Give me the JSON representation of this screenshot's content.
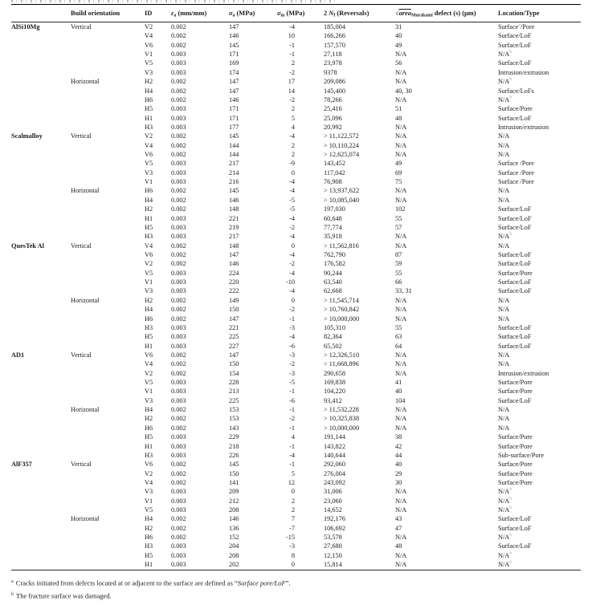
{
  "table": {
    "columns": {
      "orientation": "Build orientation",
      "id": "ID",
      "ea": {
        "sym": "ε",
        "sub": "a",
        "unit": " (mm/mm)"
      },
      "sa": {
        "sym": "σ",
        "sub": "a",
        "unit": " (MPa)"
      },
      "sm": {
        "sym": "σ",
        "sub": "m",
        "unit": " (MPa)"
      },
      "nf": {
        "pre": "2 ",
        "sym": "N",
        "sub": "f",
        "unit": " (Reversals)"
      },
      "defect": {
        "root": "√",
        "word": "area",
        "sub": "Murakami",
        "unit": " defect (s) (μm)"
      },
      "location": "Location/Type"
    },
    "groups": [
      {
        "alloy": "AlSi10Mg",
        "orientations": [
          {
            "name": "Vertical",
            "rows": [
              {
                "id": "V2",
                "ea": "0.002",
                "sa": "147",
                "sm": "-4",
                "n": "185,004",
                "defect": "31",
                "loc": "Surface",
                "sup": "a",
                "loc2": "/Pore"
              },
              {
                "id": "V4",
                "ea": "0.002",
                "sa": "146",
                "sm": "10",
                "n": "166,266",
                "defect": "40",
                "loc": "Surface/LoF"
              },
              {
                "id": "V6",
                "ea": "0.002",
                "sa": "145",
                "sm": "-1",
                "n": "157,570",
                "defect": "49",
                "loc": "Surface/LoF"
              },
              {
                "id": "V1",
                "ea": "0.003",
                "sa": "171",
                "sm": "-1",
                "n": "27,118",
                "defect": "N/A",
                "loc": "N/A",
                "sup": "b"
              },
              {
                "id": "V5",
                "ea": "0.003",
                "sa": "169",
                "sm": "2",
                "n": "23,978",
                "defect": "56",
                "loc": "Surface/LoF"
              },
              {
                "id": "V3",
                "ea": "0.003",
                "sa": "174",
                "sm": "-2",
                "n": "9378",
                "defect": "N/A",
                "loc": "Intrusion/extrusion"
              }
            ]
          },
          {
            "name": "Horizontal",
            "rows": [
              {
                "id": "H2",
                "ea": "0.002",
                "sa": "147",
                "sm": "17",
                "n": "209,086",
                "defect": "N/A",
                "loc": "N/A",
                "sup": "b"
              },
              {
                "id": "H4",
                "ea": "0.002",
                "sa": "147",
                "sm": "14",
                "n": "145,400",
                "defect": "40, 30",
                "loc": "Surface/LoFs"
              },
              {
                "id": "H6",
                "ea": "0.002",
                "sa": "146",
                "sm": "-2",
                "n": "78,266",
                "defect": "N/A",
                "loc": "N/A",
                "sup": "b"
              },
              {
                "id": "H5",
                "ea": "0.003",
                "sa": "171",
                "sm": "2",
                "n": "25,416",
                "defect": "51",
                "loc": "Surface/Pore"
              },
              {
                "id": "H1",
                "ea": "0.003",
                "sa": "171",
                "sm": "5",
                "n": "25,096",
                "defect": "48",
                "loc": "Surface/LoF"
              },
              {
                "id": "H3",
                "ea": "0.003",
                "sa": "177",
                "sm": "4",
                "n": "20,992",
                "defect": "N/A",
                "loc": "Intrusion/extrusion"
              }
            ]
          }
        ]
      },
      {
        "alloy": "Scalmalloy",
        "orientations": [
          {
            "name": "Vertical",
            "rows": [
              {
                "id": "V2",
                "ea": "0.002",
                "sa": "145",
                "sm": "-4",
                "n": "> 11,122,572",
                "defect": "N/A",
                "loc": "N/A"
              },
              {
                "id": "V4",
                "ea": "0.002",
                "sa": "144",
                "sm": "2",
                "n": "> 10,110,224",
                "defect": "N/A",
                "loc": "N/A"
              },
              {
                "id": "V6",
                "ea": "0.002",
                "sa": "144",
                "sm": "2",
                "n": "> 12,625,074",
                "defect": "N/A",
                "loc": "N/A"
              },
              {
                "id": "V5",
                "ea": "0.003",
                "sa": "217",
                "sm": "-9",
                "n": "143,452",
                "defect": "49",
                "loc": "Surface /Pore"
              },
              {
                "id": "V3",
                "ea": "0.003",
                "sa": "214",
                "sm": "0",
                "n": "117,042",
                "defect": "69",
                "loc": "Surface /Pore"
              },
              {
                "id": "V1",
                "ea": "0.003",
                "sa": "216",
                "sm": "-4",
                "n": "76,908",
                "defect": "75",
                "loc": "Surface /Pore"
              }
            ]
          },
          {
            "name": "Horizontal",
            "rows": [
              {
                "id": "H6",
                "ea": "0.002",
                "sa": "145",
                "sm": "-4",
                "n": "> 13,937,622",
                "defect": "N/A",
                "loc": "N/A"
              },
              {
                "id": "H4",
                "ea": "0.002",
                "sa": "146",
                "sm": "-5",
                "n": "> 10,085,040",
                "defect": "N/A",
                "loc": "N/A"
              },
              {
                "id": "H2",
                "ea": "0.002",
                "sa": "148",
                "sm": "-5",
                "n": "197,030",
                "defect": "102",
                "loc": "Surface/LoF"
              },
              {
                "id": "H1",
                "ea": "0.003",
                "sa": "221",
                "sm": "-4",
                "n": "60,648",
                "defect": "55",
                "loc": "Surface/LoF"
              },
              {
                "id": "H5",
                "ea": "0.003",
                "sa": "219",
                "sm": "-2",
                "n": "77,774",
                "defect": "57",
                "loc": "Surface/LoF"
              },
              {
                "id": "H3",
                "ea": "0.003",
                "sa": "217",
                "sm": "-4",
                "n": "35,918",
                "defect": "N/A",
                "loc": "N/A",
                "sup": "b"
              }
            ]
          }
        ]
      },
      {
        "alloy": "QuesTek Al",
        "orientations": [
          {
            "name": "Vertical",
            "rows": [
              {
                "id": "V4",
                "ea": "0.002",
                "sa": "148",
                "sm": "0",
                "n": "> 11,562,816",
                "defect": "N/A",
                "loc": "N/A"
              },
              {
                "id": "V6",
                "ea": "0.002",
                "sa": "147",
                "sm": "-4",
                "n": "762,790",
                "defect": "87",
                "loc": "Surface/LoF"
              },
              {
                "id": "V2",
                "ea": "0.002",
                "sa": "146",
                "sm": "-2",
                "n": "176,582",
                "defect": "59",
                "loc": "Surface/LoF"
              },
              {
                "id": "V5",
                "ea": "0.003",
                "sa": "224",
                "sm": "-4",
                "n": "90,244",
                "defect": "55",
                "loc": "Surface/Pore"
              },
              {
                "id": "V1",
                "ea": "0.003",
                "sa": "220",
                "sm": "-10",
                "n": "63,540",
                "defect": "66",
                "loc": "Surface/LoF"
              },
              {
                "id": "V3",
                "ea": "0.003",
                "sa": "222",
                "sm": "-4",
                "n": "62,668",
                "defect": "33, 31",
                "loc": "Surface/LoF"
              }
            ]
          },
          {
            "name": "Horizontal",
            "rows": [
              {
                "id": "H2",
                "ea": "0.002",
                "sa": "149",
                "sm": "0",
                "n": "> 11,545,714",
                "defect": "N/A",
                "loc": "N/A"
              },
              {
                "id": "H4",
                "ea": "0.002",
                "sa": "150",
                "sm": "-2",
                "n": "> 10,760,842",
                "defect": "N/A",
                "loc": "N/A"
              },
              {
                "id": "H6",
                "ea": "0.002",
                "sa": "147",
                "sm": "-1",
                "n": "> 10,000,000",
                "defect": "N/A",
                "loc": "N/A"
              },
              {
                "id": "H3",
                "ea": "0.003",
                "sa": "221",
                "sm": "-3",
                "n": "105,310",
                "defect": "55",
                "loc": "Surface/LoF"
              },
              {
                "id": "H5",
                "ea": "0.003",
                "sa": "225",
                "sm": "-4",
                "n": "82,364",
                "defect": "63",
                "loc": "Surface/LoF"
              },
              {
                "id": "H1",
                "ea": "0.003",
                "sa": "227",
                "sm": "-6",
                "n": "65,502",
                "defect": "64",
                "loc": "Surface/LoF"
              }
            ]
          }
        ]
      },
      {
        "alloy": "AD1",
        "orientations": [
          {
            "name": "Vertical",
            "rows": [
              {
                "id": "V6",
                "ea": "0.002",
                "sa": "147",
                "sm": "-3",
                "n": "> 12,326,510",
                "defect": "N/A",
                "loc": "N/A"
              },
              {
                "id": "V4",
                "ea": "0.002",
                "sa": "150",
                "sm": "-2",
                "n": "> 11,668,896",
                "defect": "N/A",
                "loc": "N/A"
              },
              {
                "id": "V2",
                "ea": "0.002",
                "sa": "154",
                "sm": "-3",
                "n": "290,658",
                "defect": "N/A",
                "loc": "Intrusion/extrusion"
              },
              {
                "id": "V5",
                "ea": "0.003",
                "sa": "228",
                "sm": "-5",
                "n": "169,838",
                "defect": "41",
                "loc": "Surface/Pore"
              },
              {
                "id": "V1",
                "ea": "0.003",
                "sa": "213",
                "sm": "-1",
                "n": "104,220",
                "defect": "40",
                "loc": "Surface/Pore"
              },
              {
                "id": "V3",
                "ea": "0.003",
                "sa": "225",
                "sm": "-6",
                "n": "93,412",
                "defect": "104",
                "loc": "Surface/LoF"
              }
            ]
          },
          {
            "name": "Horizontal",
            "rows": [
              {
                "id": "H4",
                "ea": "0.002",
                "sa": "153",
                "sm": "-1",
                "n": "> 11,532,228",
                "defect": "N/A",
                "loc": "N/A"
              },
              {
                "id": "H2",
                "ea": "0.002",
                "sa": "153",
                "sm": "-2",
                "n": "> 10,325,838",
                "defect": "N/A",
                "loc": "N/A"
              },
              {
                "id": "H6",
                "ea": "0.002",
                "sa": "143",
                "sm": "-1",
                "n": "> 10,000,000",
                "defect": "N/A",
                "loc": "N/A"
              },
              {
                "id": "H5",
                "ea": "0.003",
                "sa": "229",
                "sm": "4",
                "n": "191,144",
                "defect": "38",
                "loc": "Surface/Pore"
              },
              {
                "id": "H1",
                "ea": "0.003",
                "sa": "218",
                "sm": "-1",
                "n": "143,822",
                "defect": "42",
                "loc": "Surface/Pore"
              },
              {
                "id": "H3",
                "ea": "0.003",
                "sa": "226",
                "sm": "-4",
                "n": "140,644",
                "defect": "44",
                "loc": "Sub-surface/Pore"
              }
            ]
          }
        ]
      },
      {
        "alloy": "AlF357",
        "orientations": [
          {
            "name": "Vertical",
            "rows": [
              {
                "id": "V6",
                "ea": "0.002",
                "sa": "145",
                "sm": "-1",
                "n": "292,060",
                "defect": "40",
                "loc": "Surface/Pore"
              },
              {
                "id": "V2",
                "ea": "0.002",
                "sa": "150",
                "sm": "5",
                "n": "276,004",
                "defect": "29",
                "loc": "Surface/Pore"
              },
              {
                "id": "V4",
                "ea": "0.002",
                "sa": "141",
                "sm": "12",
                "n": "243,092",
                "defect": "30",
                "loc": "Surface/Pore"
              },
              {
                "id": "V3",
                "ea": "0.003",
                "sa": "209",
                "sm": "0",
                "n": "31,006",
                "defect": "N/A",
                "loc": "N/A",
                "sup": "b"
              },
              {
                "id": "V1",
                "ea": "0.003",
                "sa": "212",
                "sm": "2",
                "n": "23,060",
                "defect": "N/A",
                "loc": "N/A",
                "sup": "b"
              },
              {
                "id": "V5",
                "ea": "0.003",
                "sa": "208",
                "sm": "2",
                "n": "14,652",
                "defect": "N/A",
                "loc": "N/A",
                "sup": "b"
              }
            ]
          },
          {
            "name": "Horizontal",
            "rows": [
              {
                "id": "H4",
                "ea": "0.002",
                "sa": "146",
                "sm": "7",
                "n": "192,176",
                "defect": "43",
                "loc": "Surface/LoF"
              },
              {
                "id": "H2",
                "ea": "0.002",
                "sa": "136",
                "sm": "-7",
                "n": "106,692",
                "defect": "47",
                "loc": "Surface/LoF"
              },
              {
                "id": "H6",
                "ea": "0.002",
                "sa": "152",
                "sm": "-15",
                "n": "53,578",
                "defect": "N/A",
                "loc": "N/A",
                "sup": "b"
              },
              {
                "id": "H3",
                "ea": "0.003",
                "sa": "204",
                "sm": "-3",
                "n": "27,680",
                "defect": "48",
                "loc": "Surface/LoF"
              },
              {
                "id": "H5",
                "ea": "0.003",
                "sa": "208",
                "sm": "8",
                "n": "12,150",
                "defect": "N/A",
                "loc": "N/A",
                "sup": "b"
              },
              {
                "id": "H1",
                "ea": "0.003",
                "sa": "202",
                "sm": "0",
                "n": "15,814",
                "defect": "N/A",
                "loc": "N/A",
                "sup": "b"
              }
            ]
          }
        ]
      }
    ],
    "footnotes": [
      {
        "marker": "a",
        "pre": "Cracks initiated from defects located at or adjacent to the surface are defined as “",
        "italic": "Surface pore/LoF",
        "post": "”."
      },
      {
        "marker": "b",
        "pre": "The fracture surface was damaged.",
        "italic": "",
        "post": ""
      }
    ]
  }
}
